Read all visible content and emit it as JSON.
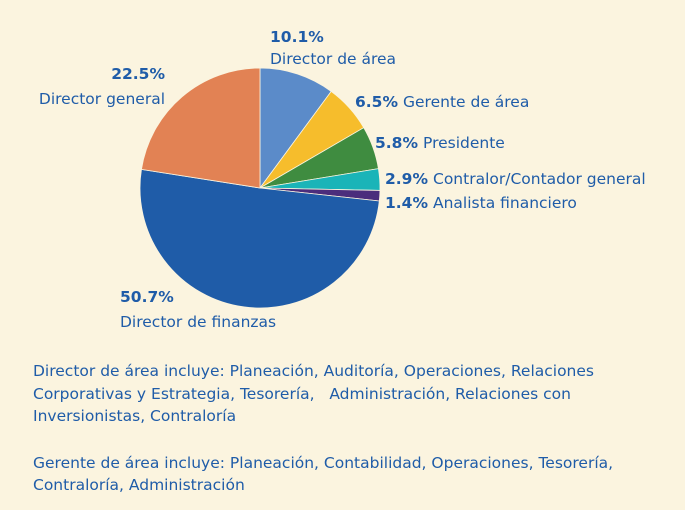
{
  "chart_data": {
    "type": "pie",
    "categories": [
      "Director de área",
      "Gerente de área",
      "Presidente",
      "Contralor/Contador general",
      "Analista financiero",
      "Director de finanzas",
      "Director general"
    ],
    "values": [
      10.1,
      6.5,
      5.8,
      2.9,
      1.4,
      50.7,
      22.5
    ],
    "value_labels": [
      "10.1%",
      "6.5%",
      "5.8%",
      "2.9%",
      "1.4%",
      "50.7%",
      "22.5%"
    ],
    "colors": [
      "#5b8bc9",
      "#f6bd2c",
      "#3f8c40",
      "#1ab4b8",
      "#4b2d7c",
      "#1f5ca8",
      "#e28254"
    ],
    "notes": [
      [
        "Director de área incluye: Planeación, Auditoría, Operaciones, Relaciones",
        "Corporativas y Estrategia, Tesorería,   Administración, Relaciones con",
        "Inversionistas, Contraloría"
      ],
      [
        "Gerente de área incluye: Planeación, Contabilidad, Operaciones, Tesorería,",
        "Contraloría, Administración"
      ]
    ]
  }
}
